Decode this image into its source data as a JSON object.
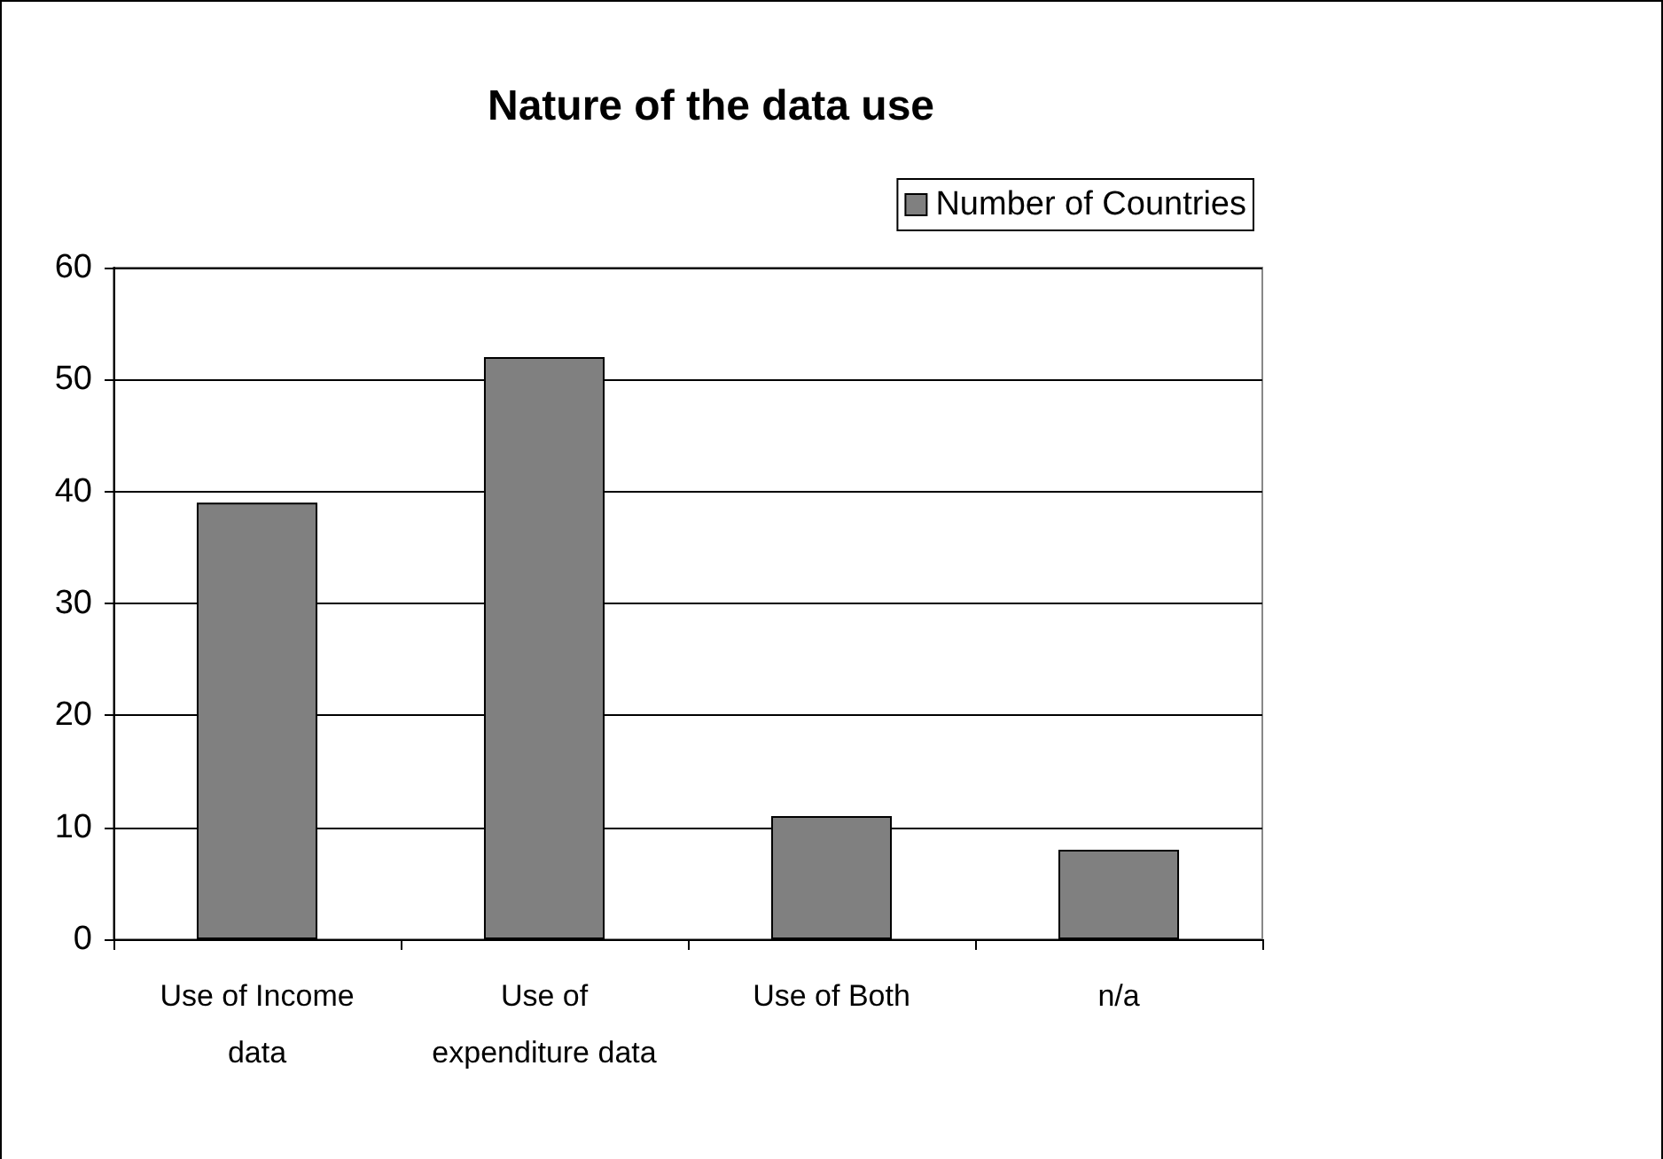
{
  "chart_data": {
    "type": "bar",
    "title": "Nature of the data use",
    "categories": [
      "Use of Income\ndata",
      "Use of\nexpenditure data",
      "Use of Both",
      "n/a"
    ],
    "series": [
      {
        "name": "Number of Countries",
        "color": "#808080",
        "values": [
          39,
          52,
          11,
          8
        ]
      }
    ],
    "ylim": [
      0,
      60
    ],
    "yticks": [
      0,
      10,
      20,
      30,
      40,
      50,
      60
    ],
    "grid": "y",
    "legend": "top right"
  }
}
